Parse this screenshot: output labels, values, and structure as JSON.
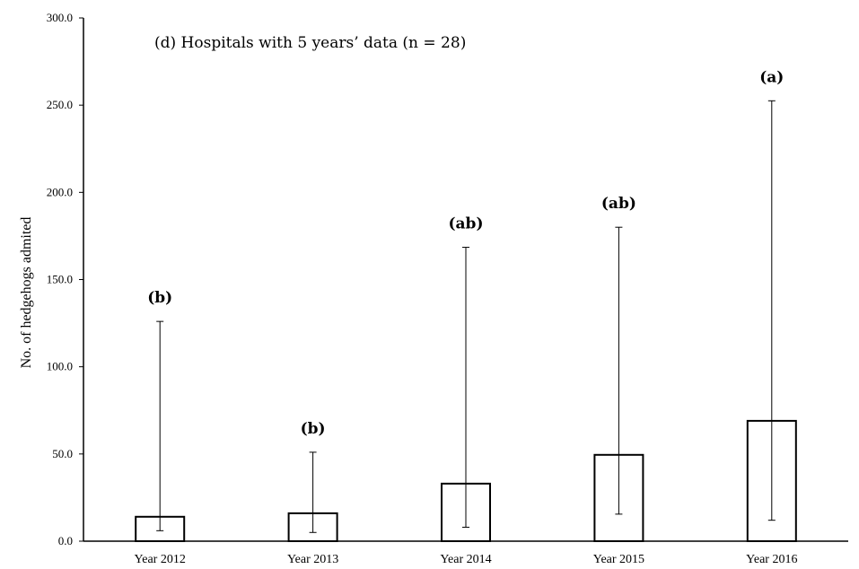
{
  "chart_data": {
    "type": "bar",
    "title": "(d) Hospitals with 5 years’ data (n = 28)",
    "xlabel": "",
    "ylabel": "No. of hedgehogs admited",
    "ylim": [
      0,
      300
    ],
    "yticks": [
      0,
      50,
      100,
      150,
      200,
      250,
      300
    ],
    "ytick_labels": [
      "0.0",
      "50.0",
      "100.0",
      "150.0",
      "200.0",
      "250.0",
      "300.0"
    ],
    "categories": [
      "Year 2012",
      "Year 2013",
      "Year 2014",
      "Year 2015",
      "Year 2016"
    ],
    "values": [
      14,
      16,
      33,
      49.5,
      69
    ],
    "error_low": [
      6,
      5,
      8,
      15.5,
      12
    ],
    "error_high": [
      126,
      51,
      168.5,
      180,
      252.5
    ],
    "significance": [
      "(b)",
      "(b)",
      "(ab)",
      "(ab)",
      "(a)"
    ],
    "grid": false,
    "legend": "none",
    "colors": {
      "bar_fill": "#ffffff",
      "bar_stroke": "#000000",
      "axis": "#000000"
    }
  }
}
